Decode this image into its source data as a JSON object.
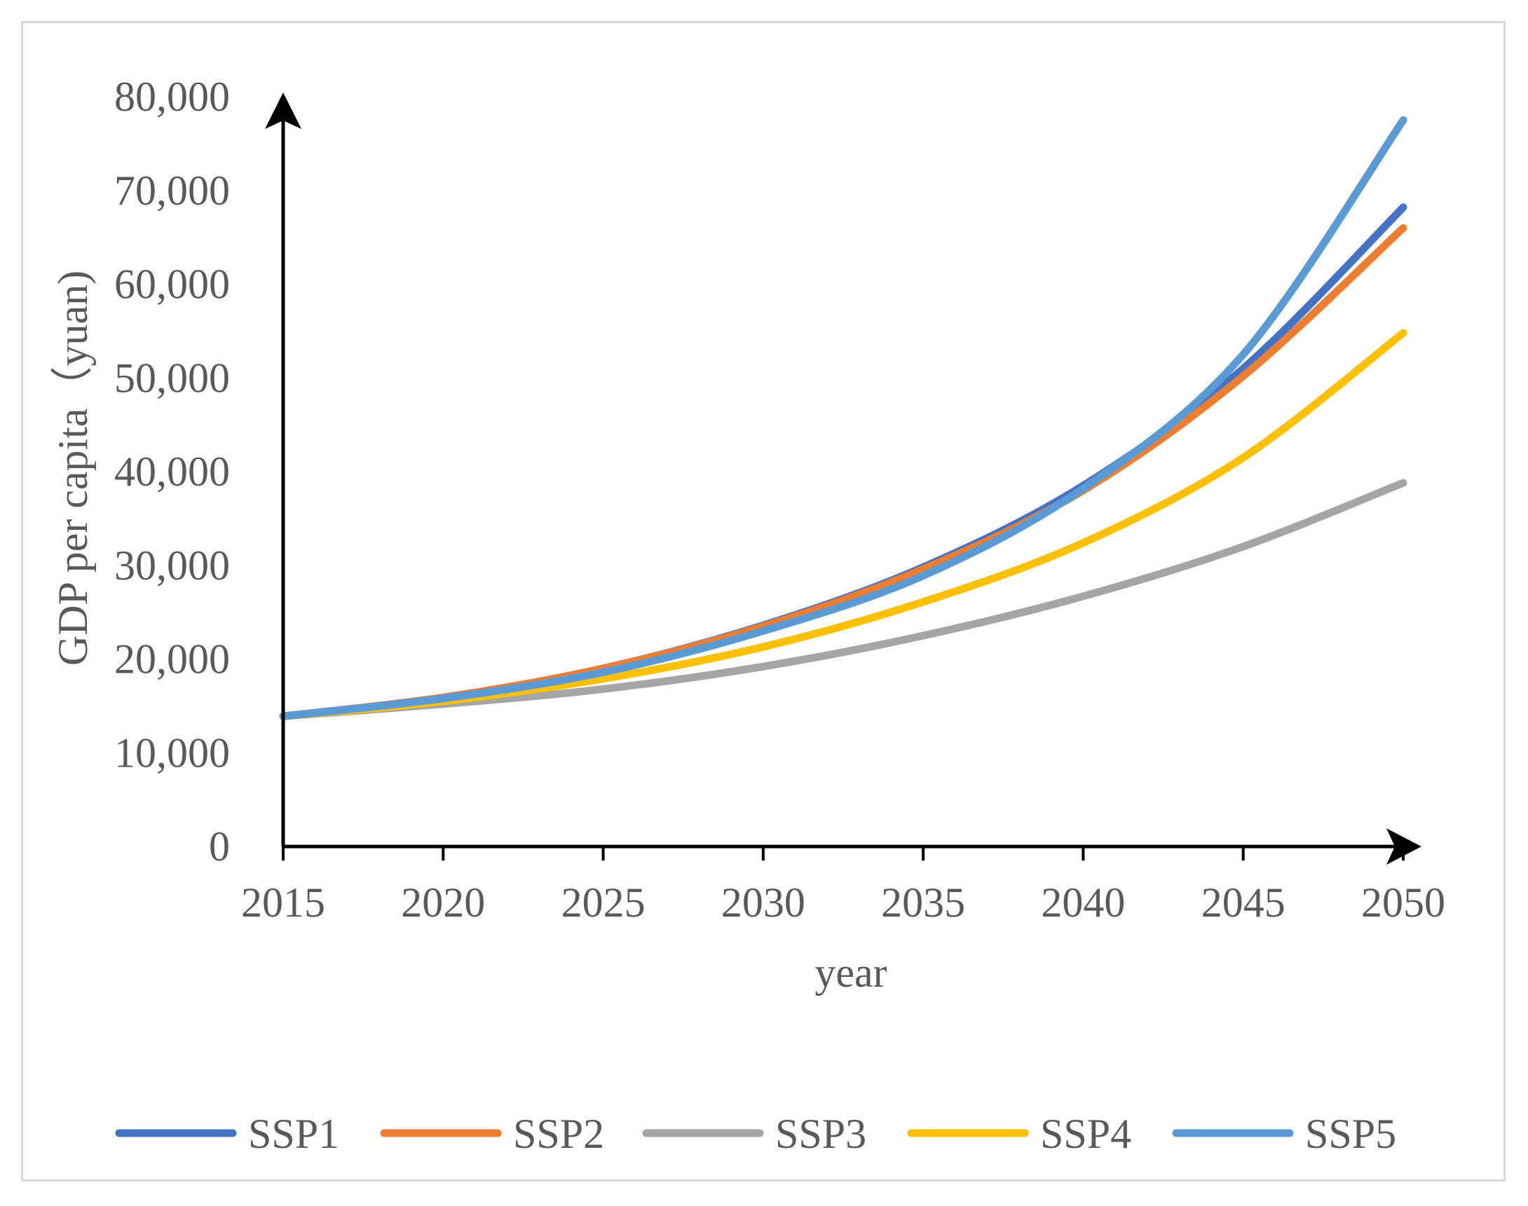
{
  "chart_data": {
    "type": "line",
    "title": "",
    "xlabel": "year",
    "ylabel": "GDP per capita（yuan)",
    "xlim": [
      2015,
      2050
    ],
    "ylim": [
      0,
      80000
    ],
    "x_ticks": [
      "2015",
      "2020",
      "2025",
      "2030",
      "2035",
      "2040",
      "2045",
      "2050"
    ],
    "y_ticks": [
      "0",
      "10,000",
      "20,000",
      "30,000",
      "40,000",
      "50,000",
      "60,000",
      "70,000",
      "80,000"
    ],
    "legend_position": "bottom",
    "x": [
      2015,
      2020,
      2025,
      2030,
      2035,
      2040,
      2045,
      2050
    ],
    "series": [
      {
        "name": "SSP1",
        "color": "#4472c4",
        "values": [
          13900,
          15900,
          19000,
          23600,
          29800,
          38500,
          51000,
          68200
        ]
      },
      {
        "name": "SSP2",
        "color": "#ed7d31",
        "values": [
          13900,
          15900,
          19000,
          23500,
          29600,
          38000,
          50200,
          66000
        ]
      },
      {
        "name": "SSP3",
        "color": "#a5a5a5",
        "values": [
          13900,
          15200,
          16800,
          19200,
          22500,
          26700,
          32000,
          38800
        ]
      },
      {
        "name": "SSP4",
        "color": "#ffc000",
        "values": [
          13900,
          15500,
          17900,
          21300,
          26100,
          32400,
          41500,
          54800
        ]
      },
      {
        "name": "SSP5",
        "color": "#5b9bd5",
        "values": [
          13900,
          15800,
          18600,
          23000,
          28900,
          38200,
          52500,
          77500
        ]
      }
    ]
  }
}
